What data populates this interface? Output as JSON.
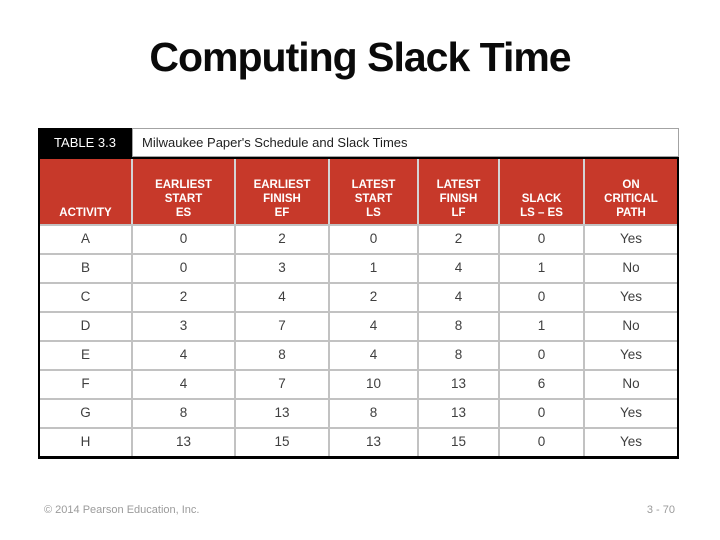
{
  "slide": {
    "title": "Computing Slack Time",
    "footer_left": "© 2014 Pearson Education, Inc.",
    "footer_right": "3 - 70"
  },
  "table": {
    "label": "TABLE 3.3",
    "caption": "Milwaukee Paper's Schedule and Slack Times",
    "columns": [
      "ACTIVITY",
      "EARLIEST\nSTART\nES",
      "EARLIEST\nFINISH\nEF",
      "LATEST\nSTART\nLS",
      "LATEST\nFINISH\nLF",
      "SLACK\nLS – ES",
      "ON\nCRITICAL\nPATH"
    ],
    "rows": [
      [
        "A",
        "0",
        "2",
        "0",
        "2",
        "0",
        "Yes"
      ],
      [
        "B",
        "0",
        "3",
        "1",
        "4",
        "1",
        "No"
      ],
      [
        "C",
        "2",
        "4",
        "2",
        "4",
        "0",
        "Yes"
      ],
      [
        "D",
        "3",
        "7",
        "4",
        "8",
        "1",
        "No"
      ],
      [
        "E",
        "4",
        "8",
        "4",
        "8",
        "0",
        "Yes"
      ],
      [
        "F",
        "4",
        "7",
        "10",
        "13",
        "6",
        "No"
      ],
      [
        "G",
        "8",
        "13",
        "8",
        "13",
        "0",
        "Yes"
      ],
      [
        "H",
        "13",
        "15",
        "13",
        "15",
        "0",
        "Yes"
      ]
    ],
    "colors": {
      "header_bg": "#C7392A",
      "header_text": "#FFFFFF",
      "label_bg": "#000000",
      "border": "#000000",
      "separator": "#C2C2C2"
    }
  }
}
